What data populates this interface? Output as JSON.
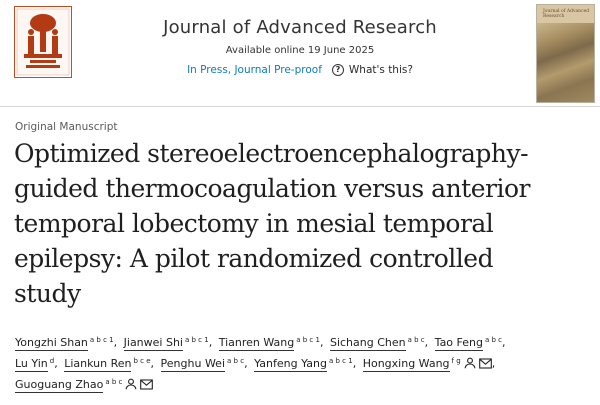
{
  "header": {
    "journal": "Journal of Advanced Research",
    "available": "Available online 19 June 2025",
    "in_press": "In Press, Journal Pre-proof",
    "whats_this": "What's this?",
    "help_icon": "question-circle-icon",
    "publisher_logo": "elsevier-tree-logo",
    "cover_image": "journal-cover-thumbnail",
    "cover_title": "Journal of Advanced Research"
  },
  "article": {
    "type": "Original Manuscript",
    "title_lines": [
      "Optimized stereoelectroencephalography-",
      "guided thermocoagulation versus anterior",
      "temporal lobectomy in mesial temporal",
      "epilepsy: A pilot randomized controlled",
      "study"
    ]
  },
  "authors": [
    {
      "name": "Yongzhi Shan",
      "sup": "a b c 1",
      "sep": ","
    },
    {
      "name": "Jianwei Shi",
      "sup": "a b c 1",
      "sep": ","
    },
    {
      "name": "Tianren Wang",
      "sup": "a b c 1",
      "sep": ","
    },
    {
      "name": "Sichang Chen",
      "sup": "a b c",
      "sep": ","
    },
    {
      "name": "Tao Feng",
      "sup": "a b c",
      "sep": ","
    },
    {
      "name": "Lu Yin",
      "sup": "d",
      "sep": ","
    },
    {
      "name": "Liankun Ren",
      "sup": "b c e",
      "sep": ","
    },
    {
      "name": "Penghu Wei",
      "sup": "a b c",
      "sep": ","
    },
    {
      "name": "Yanfeng Yang",
      "sup": "a b c 1",
      "sep": ","
    },
    {
      "name": "Hongxing Wang",
      "sup": "f g",
      "sep": ",",
      "icons": [
        "person-icon",
        "envelope-icon"
      ]
    },
    {
      "name": "Guoguang Zhao",
      "sup": "a b c",
      "sep": "",
      "icons": [
        "person-icon",
        "envelope-icon"
      ]
    }
  ],
  "colors": {
    "link": "#0c7dbb",
    "text": "#1f1f1f",
    "muted": "#5a5a5a",
    "divider": "#d4d4d4"
  }
}
